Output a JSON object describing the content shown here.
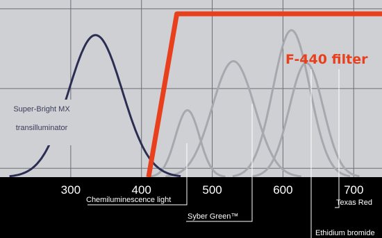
{
  "chart_data": {
    "type": "line",
    "xlim": [
      200,
      740
    ],
    "ylim": [
      0,
      1
    ],
    "x_ticks": [
      300,
      400,
      500,
      600,
      700
    ],
    "x_tick_labels": [
      "300",
      "400",
      "500",
      "600",
      "700"
    ],
    "grid": true,
    "series": [
      {
        "name": "Super-Bright MX transilluminator",
        "role": "source",
        "color": "#2b2e52",
        "curve": {
          "center": 335,
          "sigma": 38,
          "peak": 0.87
        }
      },
      {
        "name": "Chemiluminescence light",
        "role": "emission",
        "color": "#a6a8ae",
        "curve": {
          "center": 465,
          "sigma": 17,
          "peak": 0.41
        }
      },
      {
        "name": "Syber Green™",
        "role": "emission",
        "color": "#a6a8ae",
        "curve": {
          "center": 530,
          "sigma": 30,
          "peak": 0.71
        }
      },
      {
        "name": "Ethidium bromide",
        "role": "emission",
        "color": "#a6a8ae",
        "curve": {
          "center": 612,
          "sigma": 26,
          "peak": 0.9
        }
      },
      {
        "name": "Texas Red",
        "role": "emission",
        "color": "#a6a8ae",
        "curve": {
          "center": 633,
          "sigma": 24,
          "peak": 0.7
        }
      },
      {
        "name": "F-440 filter",
        "role": "filter",
        "color": "#e8401c",
        "points": [
          [
            410,
            0
          ],
          [
            450,
            1.0
          ],
          [
            740,
            1.0
          ]
        ]
      }
    ]
  },
  "labels": {
    "source_line1": "Super-Bright MX",
    "source_line2": "transilluminator",
    "filter": "F-440 filter",
    "chemi": "Chemiluminescence light",
    "sybr": "Syber Green™",
    "etbr": "Ethidium bromide",
    "texas": "Texas Red"
  }
}
